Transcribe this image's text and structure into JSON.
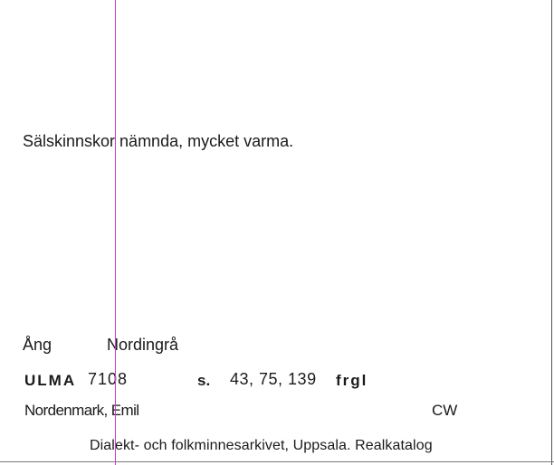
{
  "card": {
    "note": "Sälskinnskor nämnda, mycket varma.",
    "place": {
      "abbr": "Ång",
      "name": "Nordingrå"
    },
    "archive": {
      "label": "ULMA",
      "number": "7108",
      "page_label": "s.",
      "pages": "43, 75, 139",
      "category": "frgl"
    },
    "informant": "Nordenmark, Emil",
    "recorder": "CW",
    "footer": "Dialekt- och folkminnesarkivet, Uppsala. Realkatalog"
  }
}
